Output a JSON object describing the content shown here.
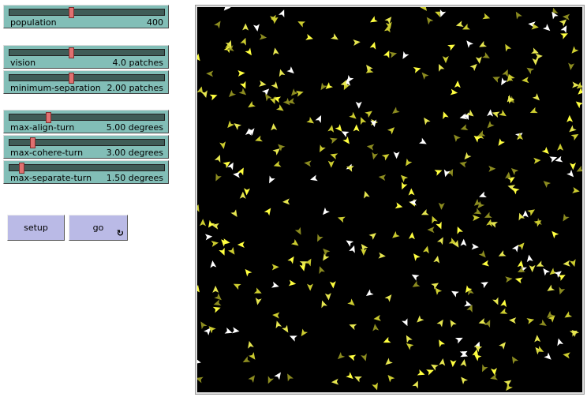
{
  "sliders": [
    {
      "label": "population",
      "value": "400",
      "fraction": 0.4
    },
    {
      "label": "vision",
      "value": "4.0 patches",
      "fraction": 0.4
    },
    {
      "label": "minimum-separation",
      "value": "2.00 patches",
      "fraction": 0.4
    },
    {
      "label": "max-align-turn",
      "value": "5.00 degrees",
      "fraction": 0.25
    },
    {
      "label": "max-cohere-turn",
      "value": "3.00 degrees",
      "fraction": 0.15
    },
    {
      "label": "max-separate-turn",
      "value": "1.50 degrees",
      "fraction": 0.075
    }
  ],
  "buttons": {
    "setup": "setup",
    "go": "go",
    "go_icon": "forever-icon"
  },
  "world": {
    "background": "#000000",
    "turtle_colors": [
      "#ffff40",
      "#ffffff",
      "#cccc30",
      "#8c8c20",
      "#e6e650"
    ]
  }
}
